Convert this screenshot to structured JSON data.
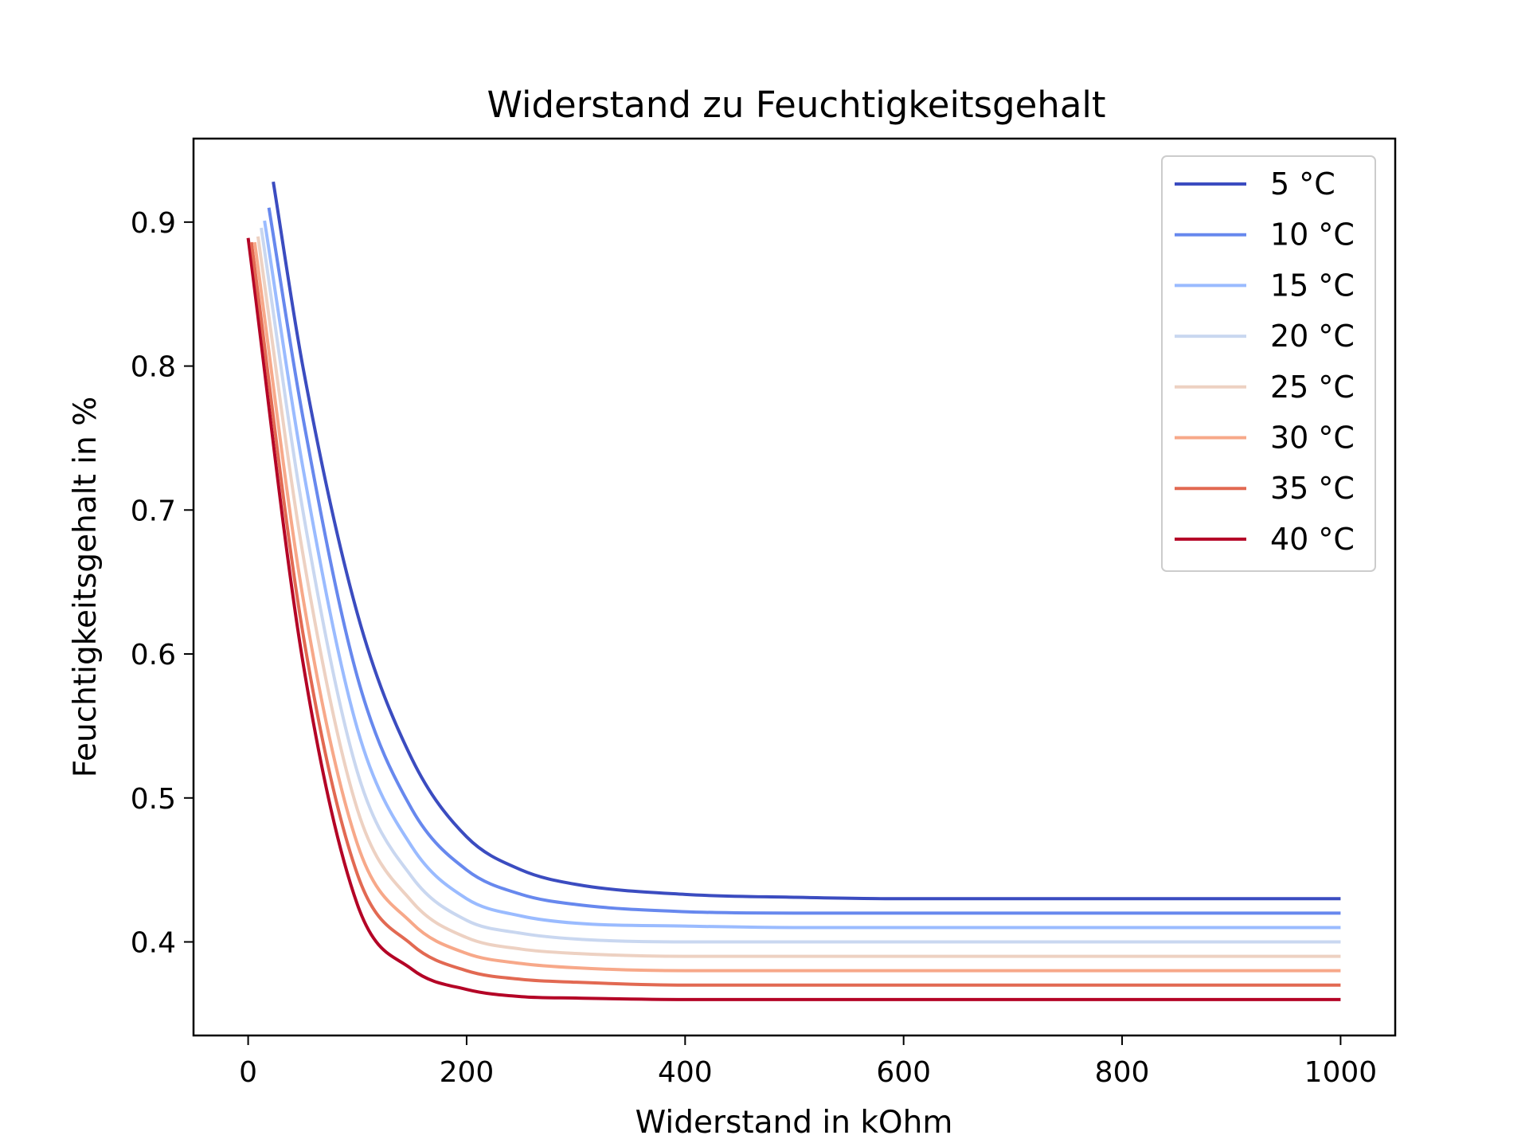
{
  "chart_data": {
    "type": "line",
    "title": "Widerstand zu Feuchtigkeitsgehalt",
    "xlabel": "Widerstand in kOhm",
    "ylabel": "Feuchtigkeitsgehalt in %",
    "xlim": [
      -50,
      1050
    ],
    "ylim": [
      0.335,
      0.958
    ],
    "xticks": [
      0,
      200,
      400,
      600,
      800,
      1000
    ],
    "xtick_labels": [
      "0",
      "200",
      "400",
      "600",
      "800",
      "1000"
    ],
    "yticks": [
      0.4,
      0.5,
      0.6,
      0.7,
      0.8,
      0.9
    ],
    "ytick_labels": [
      "0.4",
      "0.5",
      "0.6",
      "0.7",
      "0.8",
      "0.9"
    ],
    "grid": false,
    "legend_position": "top-right",
    "x": [
      0,
      100,
      200,
      300,
      400,
      500,
      600,
      700,
      800,
      900,
      1000
    ],
    "series": [
      {
        "name": "5 °C",
        "color": "#3b4cc0",
        "x_start": 23,
        "y_start": 0.928,
        "x": [
          23,
          50,
          100,
          150,
          200,
          250,
          300,
          400,
          500,
          600,
          700,
          800,
          900,
          1000
        ],
        "y": [
          0.928,
          0.8,
          0.628,
          0.527,
          0.473,
          0.45,
          0.44,
          0.433,
          0.431,
          0.43,
          0.43,
          0.43,
          0.43,
          0.43
        ]
      },
      {
        "name": "10 °C",
        "color": "#6788ee",
        "x_start": 19,
        "y_start": 0.91,
        "x": [
          19,
          50,
          100,
          150,
          200,
          250,
          300,
          400,
          500,
          600,
          700,
          800,
          900,
          1000
        ],
        "y": [
          0.91,
          0.765,
          0.584,
          0.492,
          0.45,
          0.433,
          0.426,
          0.421,
          0.42,
          0.42,
          0.42,
          0.42,
          0.42,
          0.42
        ]
      },
      {
        "name": "15 °C",
        "color": "#9abbff",
        "x_start": 15,
        "y_start": 0.901,
        "x": [
          15,
          50,
          100,
          150,
          200,
          250,
          300,
          400,
          500,
          600,
          700,
          800,
          900,
          1000
        ],
        "y": [
          0.901,
          0.73,
          0.548,
          0.466,
          0.43,
          0.418,
          0.413,
          0.411,
          0.41,
          0.41,
          0.41,
          0.41,
          0.41,
          0.41
        ]
      },
      {
        "name": "20 °C",
        "color": "#c9d7f0",
        "x_start": 12,
        "y_start": 0.896,
        "x": [
          12,
          50,
          100,
          150,
          200,
          250,
          300,
          400,
          500,
          600,
          700,
          800,
          900,
          1000
        ],
        "y": [
          0.896,
          0.7,
          0.518,
          0.445,
          0.415,
          0.406,
          0.402,
          0.4,
          0.4,
          0.4,
          0.4,
          0.4,
          0.4,
          0.4
        ]
      },
      {
        "name": "25 °C",
        "color": "#edd1c2",
        "x_start": 9,
        "y_start": 0.89,
        "x": [
          9,
          50,
          100,
          150,
          200,
          250,
          300,
          400,
          500,
          600,
          700,
          800,
          900,
          1000
        ],
        "y": [
          0.89,
          0.67,
          0.492,
          0.428,
          0.403,
          0.395,
          0.392,
          0.39,
          0.39,
          0.39,
          0.39,
          0.39,
          0.39,
          0.39
        ]
      },
      {
        "name": "30 °C",
        "color": "#f7a889",
        "x_start": 6,
        "y_start": 0.886,
        "x": [
          6,
          50,
          100,
          150,
          200,
          250,
          300,
          400,
          500,
          600,
          700,
          800,
          900,
          1000
        ],
        "y": [
          0.886,
          0.64,
          0.468,
          0.413,
          0.392,
          0.385,
          0.382,
          0.38,
          0.38,
          0.38,
          0.38,
          0.38,
          0.38,
          0.38
        ]
      },
      {
        "name": "35 °C",
        "color": "#e26952",
        "x_start": 3,
        "y_start": 0.886,
        "x": [
          3,
          50,
          100,
          150,
          200,
          250,
          300,
          400,
          500,
          600,
          700,
          800,
          900,
          1000
        ],
        "y": [
          0.886,
          0.615,
          0.447,
          0.398,
          0.38,
          0.374,
          0.372,
          0.37,
          0.37,
          0.37,
          0.37,
          0.37,
          0.37,
          0.37
        ]
      },
      {
        "name": "40 °C",
        "color": "#b40426",
        "x_start": 0,
        "y_start": 0.889,
        "x": [
          0,
          50,
          100,
          150,
          200,
          250,
          300,
          400,
          500,
          600,
          700,
          800,
          900,
          1000
        ],
        "y": [
          0.889,
          0.595,
          0.426,
          0.381,
          0.367,
          0.362,
          0.361,
          0.36,
          0.36,
          0.36,
          0.36,
          0.36,
          0.36,
          0.36
        ]
      }
    ]
  }
}
